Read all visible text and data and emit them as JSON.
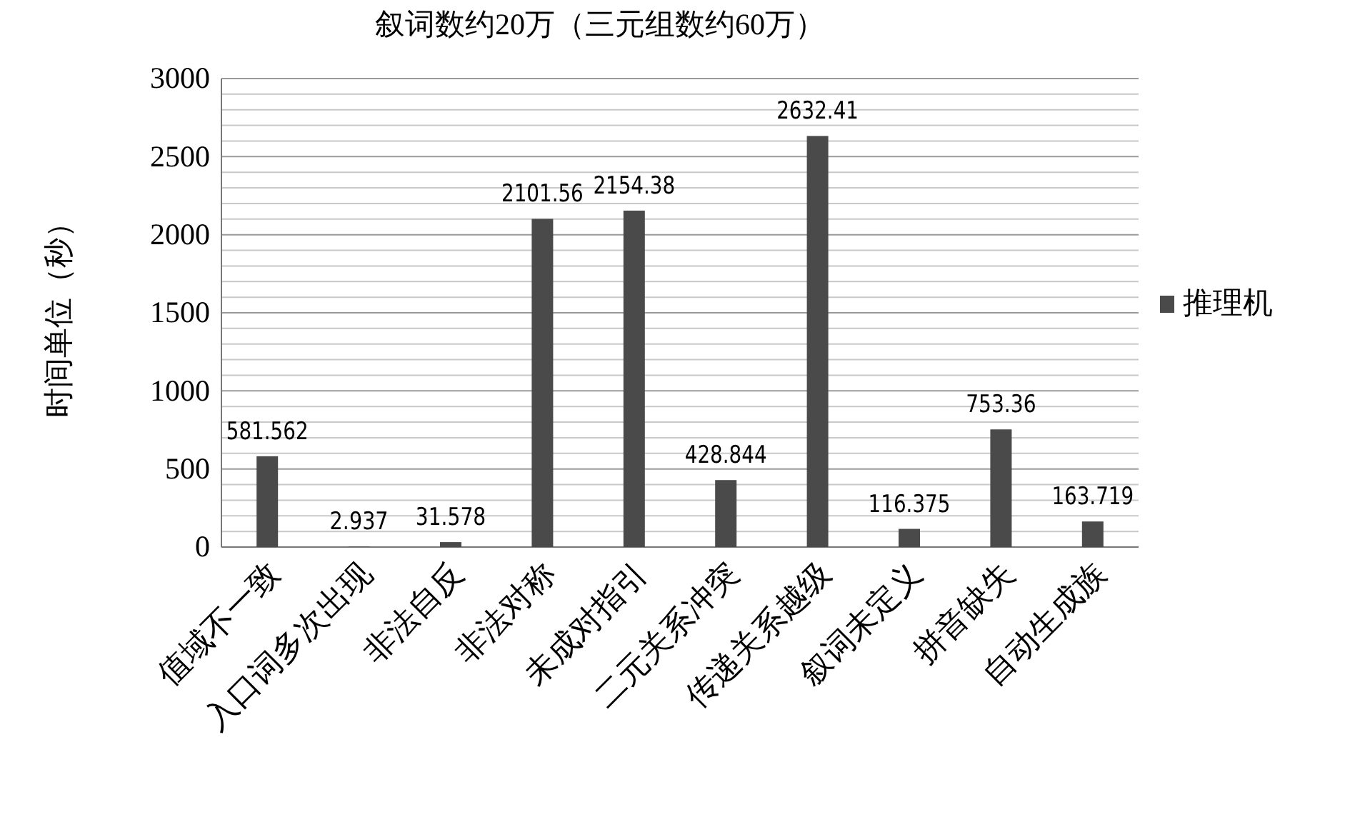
{
  "chart_data": {
    "type": "bar",
    "title": "叙词数约20万（三元组数约60万）",
    "ylabel": "时间单位（秒）",
    "categories": [
      "值域不一致",
      "入口词多次出现",
      "非法自反",
      "非法对称",
      "未成对指引",
      "二元关系冲突",
      "传递关系越级",
      "叙词未定义",
      "拼音缺失",
      "自动生成族"
    ],
    "series": [
      {
        "name": "推理机",
        "color": "#4a4a4a",
        "values": [
          581.562,
          2.937,
          31.578,
          2101.56,
          2154.38,
          428.844,
          2632.41,
          116.375,
          753.36,
          163.719
        ]
      }
    ],
    "ylim": [
      0,
      3000
    ],
    "yticks": [
      0,
      {
        "value": 100,
        "label": null
      },
      {
        "value": 200,
        "label": null
      },
      {
        "value": 300,
        "label": null
      },
      {
        "value": 400,
        "label": null
      },
      500,
      {
        "value": 600,
        "label": null
      },
      {
        "value": 700,
        "label": null
      },
      {
        "value": 800,
        "label": null
      },
      {
        "value": 900,
        "label": null
      },
      1000,
      {
        "value": 1100,
        "label": null
      },
      {
        "value": 1200,
        "label": null
      },
      {
        "value": 1300,
        "label": null
      },
      {
        "value": 1400,
        "label": null
      },
      1500,
      {
        "value": 1600,
        "label": null
      },
      {
        "value": 1700,
        "label": null
      },
      {
        "value": 1800,
        "label": null
      },
      {
        "value": 1900,
        "label": null
      },
      2000,
      {
        "value": 2100,
        "label": null
      },
      {
        "value": 2200,
        "label": null
      },
      {
        "value": 2300,
        "label": null
      },
      {
        "value": 2400,
        "label": null
      },
      2500,
      {
        "value": 2600,
        "label": null
      },
      {
        "value": 2700,
        "label": null
      },
      {
        "value": 2800,
        "label": null
      },
      {
        "value": 2900,
        "label": null
      },
      3000
    ],
    "grid": "y",
    "legend": "right",
    "data_labels": true
  }
}
